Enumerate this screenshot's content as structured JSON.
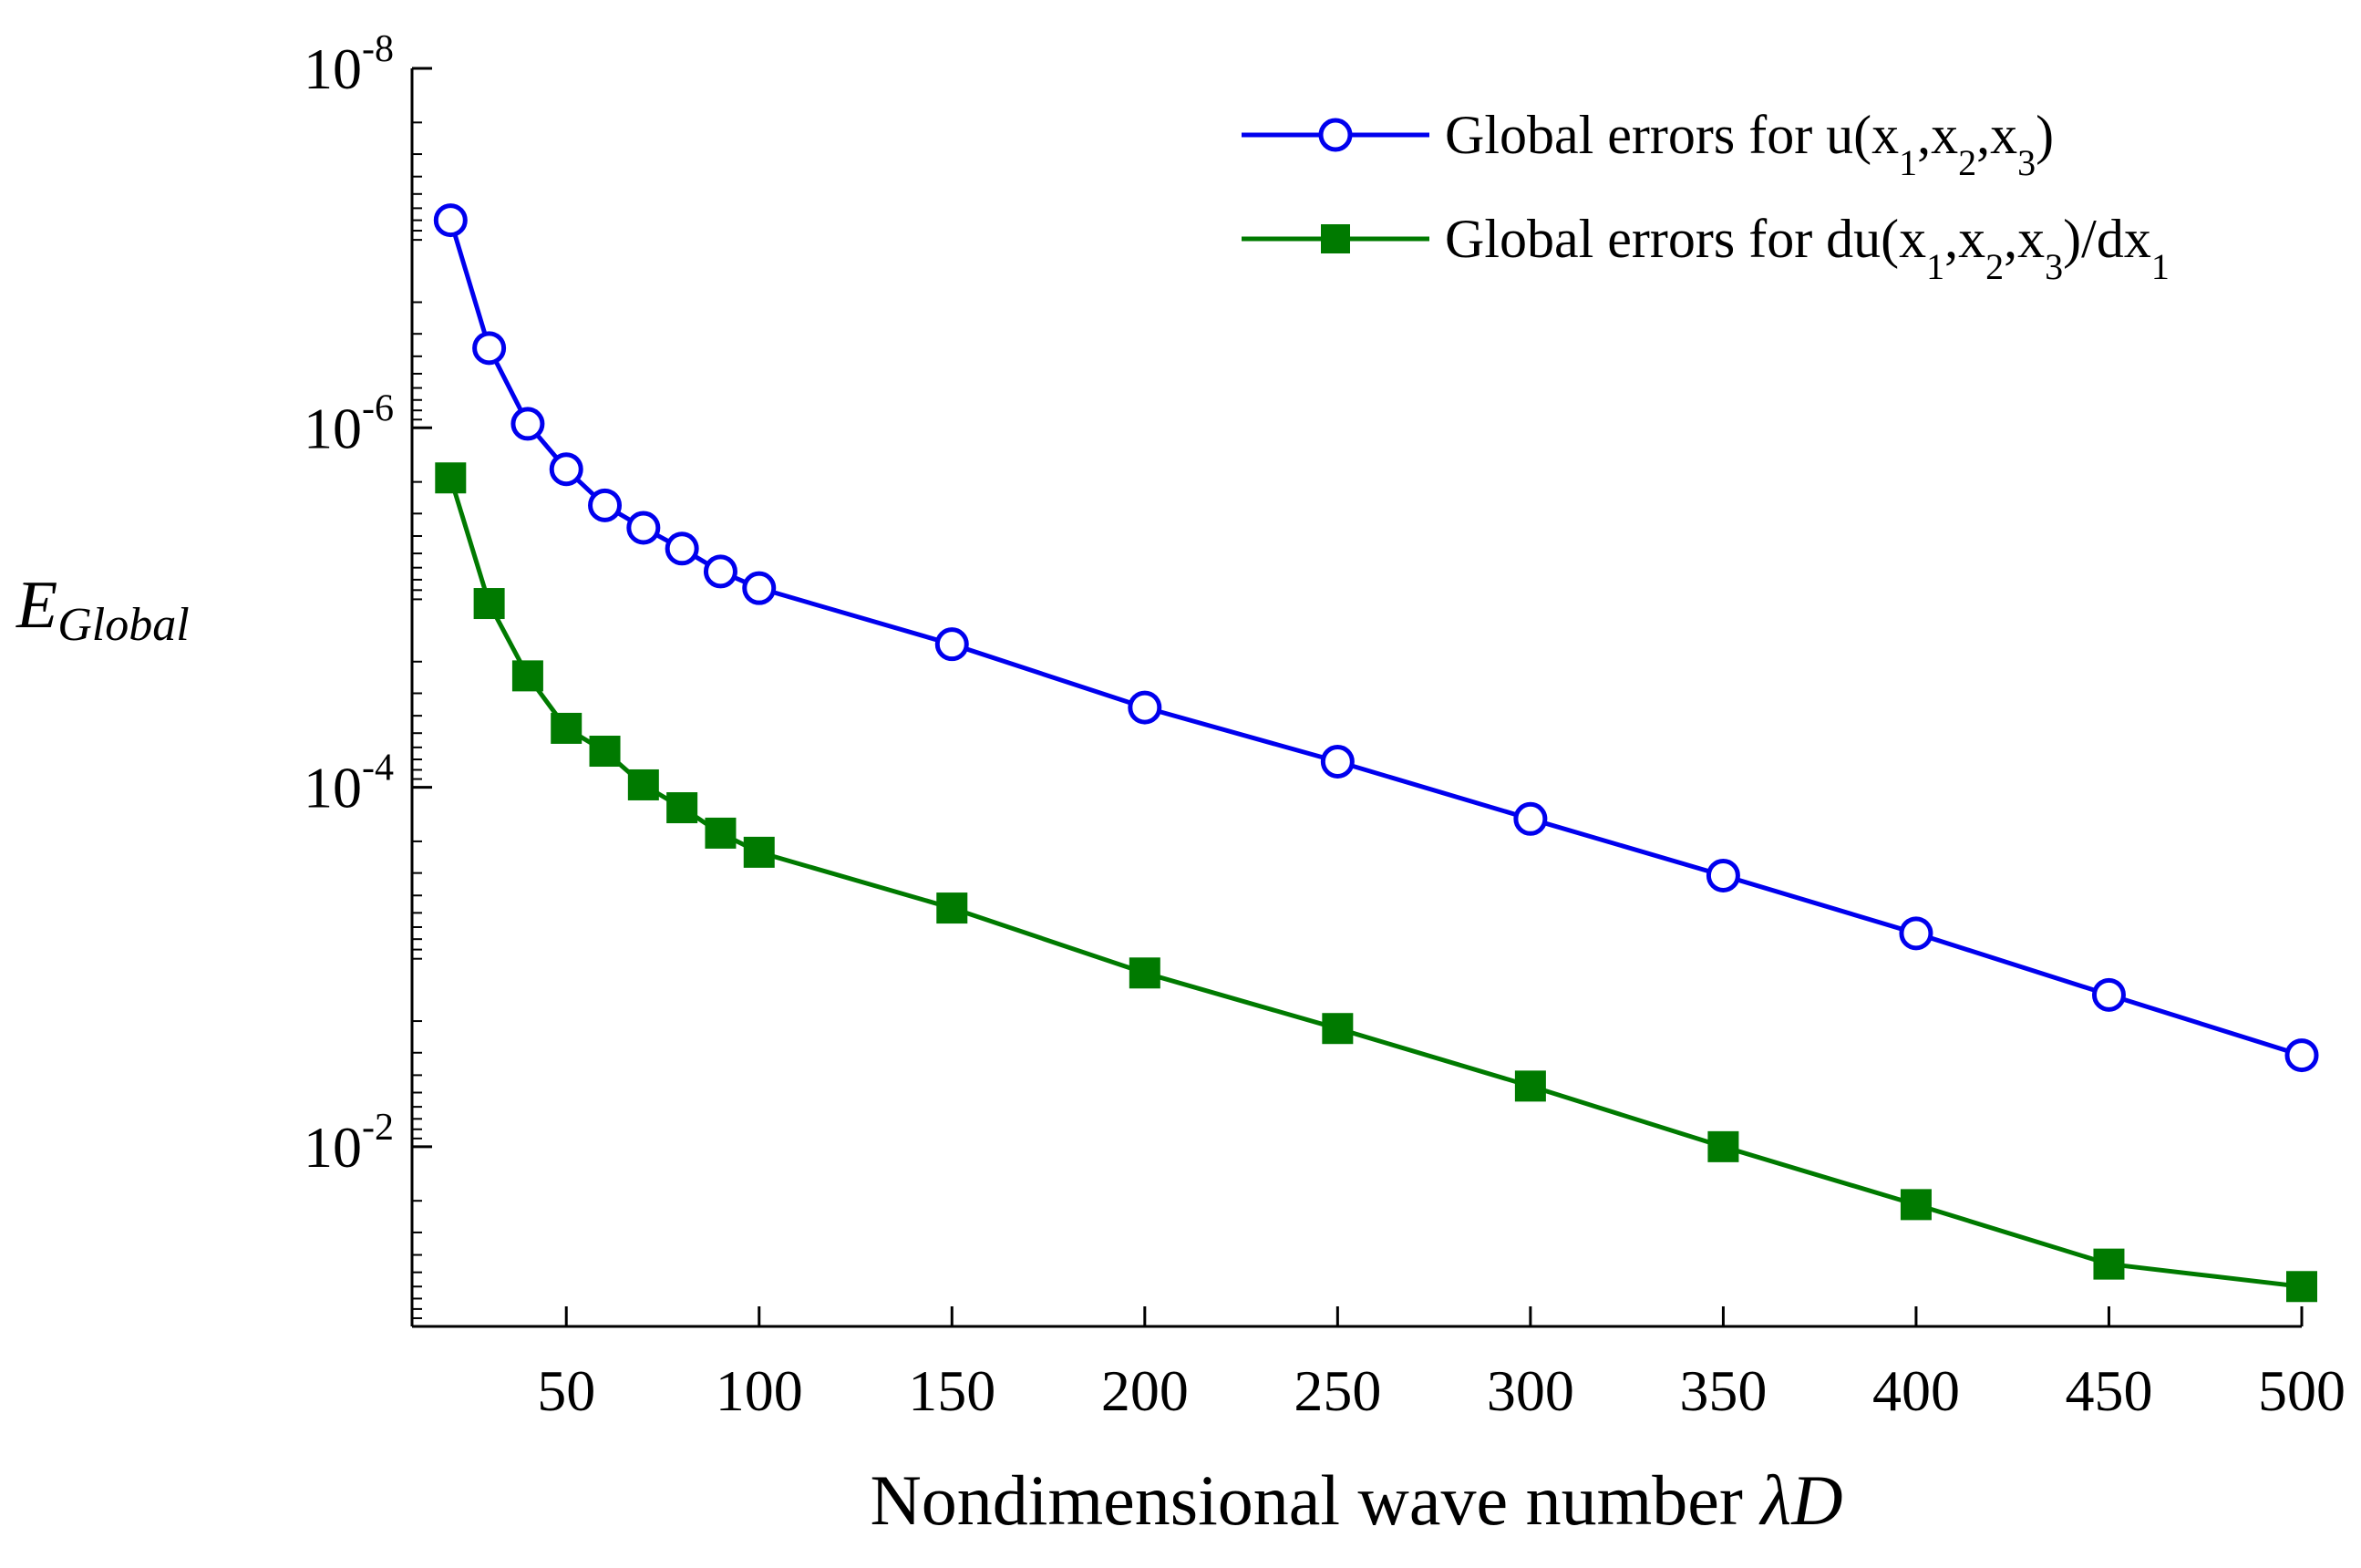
{
  "chart_data": {
    "type": "line",
    "yscale": "log",
    "yaxis_reversed": true,
    "xlim": [
      10,
      500
    ],
    "ylim": [
      1e-08,
      0.1
    ],
    "x": [
      20,
      30,
      40,
      50,
      60,
      70,
      80,
      90,
      100,
      150,
      200,
      250,
      300,
      350,
      400,
      450,
      500
    ],
    "xticks": [
      50,
      100,
      150,
      200,
      250,
      300,
      350,
      400,
      450,
      500
    ],
    "yticks": [
      {
        "value": 1e-08,
        "base": "10",
        "exp": "-8"
      },
      {
        "value": 1e-06,
        "base": "10",
        "exp": "-6"
      },
      {
        "value": 0.0001,
        "base": "10",
        "exp": "-4"
      },
      {
        "value": 0.01,
        "base": "10",
        "exp": "-2"
      }
    ],
    "xlabel": "Nondimensional wave number",
    "xlabel_symbol": "λD",
    "ylabel": {
      "main": "E",
      "sub": "Global"
    },
    "series": [
      {
        "name": "Global errors for u(x1,x2,x3)",
        "legend_parts": [
          {
            "t": "Global errors for u(x",
            "sub": false
          },
          {
            "t": "1",
            "sub": true
          },
          {
            "t": ",x",
            "sub": false
          },
          {
            "t": "2",
            "sub": true
          },
          {
            "t": ",x",
            "sub": false
          },
          {
            "t": "3",
            "sub": true
          },
          {
            "t": ")",
            "sub": false
          }
        ],
        "color": "#0000ee",
        "marker": "circle",
        "values": [
          7e-08,
          3.6e-07,
          9.5e-07,
          1.7e-06,
          2.7e-06,
          3.6e-06,
          4.7e-06,
          6.3e-06,
          7.8e-06,
          1.6e-05,
          3.6e-05,
          7.2e-05,
          0.00015,
          0.00031,
          0.00065,
          0.00143,
          0.0031
        ]
      },
      {
        "name": "Global errors for du(x1,x2,x3)/dx1",
        "legend_parts": [
          {
            "t": "Global errors for du(x",
            "sub": false
          },
          {
            "t": "1",
            "sub": true
          },
          {
            "t": ",x",
            "sub": false
          },
          {
            "t": "2",
            "sub": true
          },
          {
            "t": ",x",
            "sub": false
          },
          {
            "t": "3",
            "sub": true
          },
          {
            "t": ")/dx",
            "sub": false
          },
          {
            "t": "1",
            "sub": true
          }
        ],
        "color": "#007a00",
        "marker": "square",
        "values": [
          1.9e-06,
          9.5e-06,
          2.4e-05,
          4.7e-05,
          6.3e-05,
          9.7e-05,
          0.00013,
          0.00018,
          0.00023,
          0.00047,
          0.00108,
          0.0022,
          0.0046,
          0.01,
          0.021,
          0.045,
          0.06
        ]
      }
    ]
  }
}
